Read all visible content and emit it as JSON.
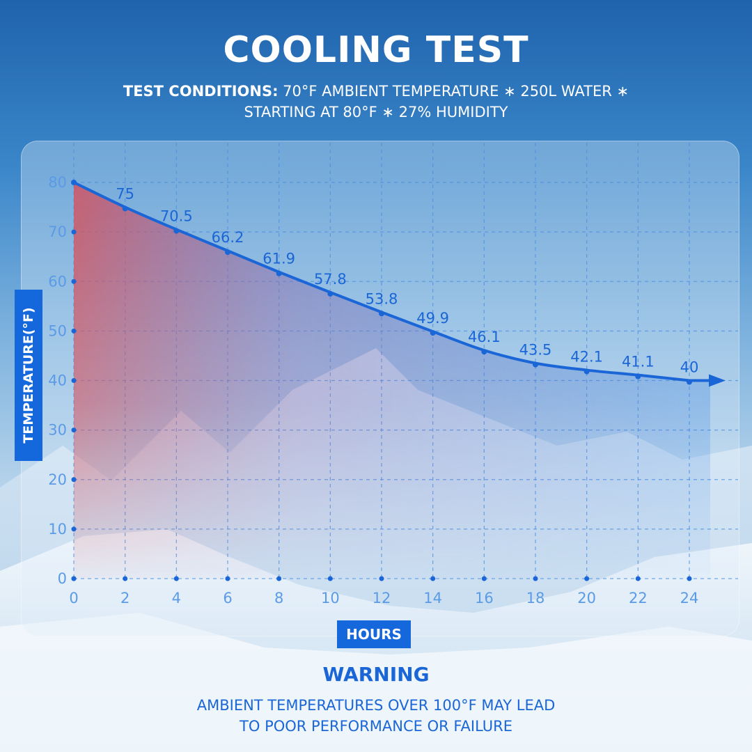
{
  "title": "COOLING TEST",
  "conditions": {
    "lead": "TEST CONDITIONS:",
    "line1": "70°F AMBIENT TEMPERATURE ∗  250L WATER ∗",
    "line2": "STARTING AT 80°F ∗ 27% HUMIDITY"
  },
  "warning": {
    "title": "WARNING",
    "line1": "AMBIENT TEMPERATURES OVER 100°F MAY LEAD",
    "line2": "TO POOR PERFORMANCE OR FAILURE"
  },
  "colors": {
    "accent": "#1567dc",
    "line": "#1a66d6",
    "warm_fill": "#d4525e",
    "grid": "#4a8fe0"
  },
  "chart_data": {
    "type": "line",
    "xlabel": "HOURS",
    "ylabel": "TEMPERATURE(°F)",
    "x": [
      0,
      2,
      4,
      6,
      8,
      10,
      12,
      14,
      16,
      18,
      20,
      22,
      24
    ],
    "series": [
      {
        "values": [
          80,
          75,
          70.5,
          66.2,
          61.9,
          57.8,
          53.8,
          49.9,
          46.1,
          43.5,
          42.1,
          41.1,
          40
        ],
        "labels": [
          "",
          "75",
          "70.5",
          "66.2",
          "61.9",
          "57.8",
          "53.8",
          "49.9",
          "46.1",
          "43.5",
          "42.1",
          "41.1",
          "40"
        ]
      }
    ],
    "xticks": [
      "0",
      "2",
      "4",
      "6",
      "8",
      "10",
      "12",
      "14",
      "16",
      "18",
      "20",
      "22",
      "24"
    ],
    "yticks": [
      "0",
      "10",
      "20",
      "30",
      "40",
      "50",
      "60",
      "70",
      "80"
    ],
    "xlim": [
      0,
      24
    ],
    "ylim": [
      0,
      80
    ],
    "grid": true,
    "line_style": "smooth curve with arrow",
    "area_fill": "gradient red to blue under curve"
  }
}
